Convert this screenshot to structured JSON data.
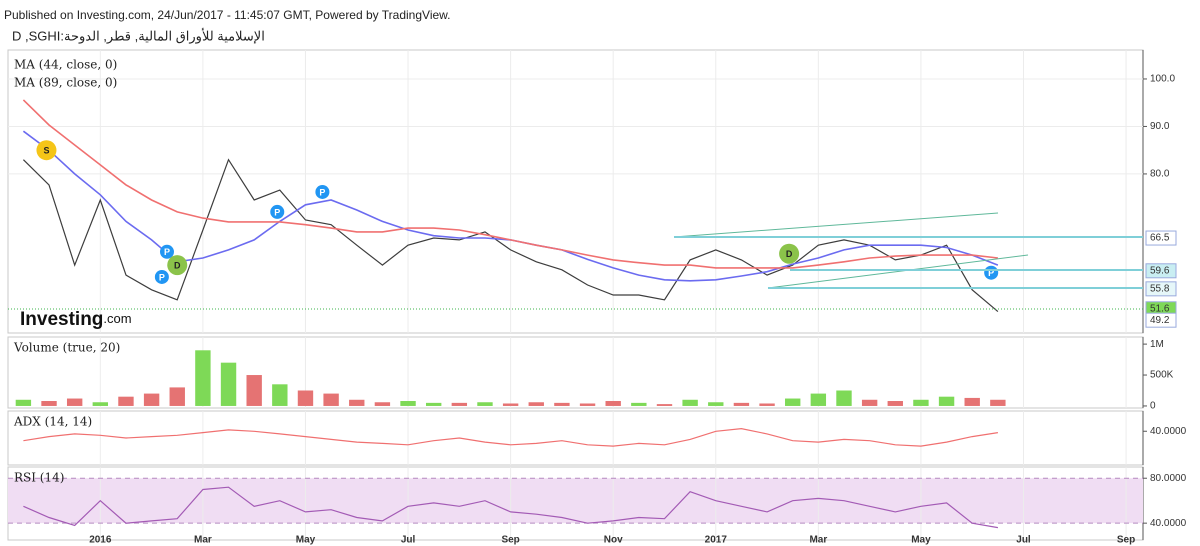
{
  "header": {
    "published": "Published on Investing.com, 24/Jun/2017 - 11:45:07 GMT, Powered by TradingView.",
    "symbol": "D ,SGHI:الإسلامية للأوراق المالية, قطر, الدوحة"
  },
  "logo": {
    "name": "Investing",
    "suffix": ".com"
  },
  "chart_data": [
    {
      "type": "line",
      "x": [
        -1.5,
        -1,
        -0.5,
        0,
        0.5,
        1,
        1.5,
        2,
        2.5,
        3,
        3.5,
        4,
        4.5,
        5,
        5.5,
        6,
        6.5,
        7,
        7.5,
        8,
        8.5,
        9,
        9.5,
        10,
        10.5,
        11,
        11.5,
        12,
        12.5,
        13,
        13.5,
        14,
        14.5,
        15,
        15.5,
        16,
        16.5,
        17,
        17.5
      ],
      "series": [
        {
          "color": "#3d3d3d",
          "values": [
            83,
            77.7,
            60.8,
            74.5,
            58.7,
            55.6,
            53.5,
            68.2,
            83,
            74.5,
            76.6,
            70.3,
            69.3,
            65,
            60.8,
            65,
            66.5,
            66.1,
            67.8,
            64,
            61.5,
            59.8,
            56.6,
            54.5,
            54.5,
            53.5,
            61.9,
            64,
            61.9,
            58.7,
            60.8,
            65,
            66.1,
            65,
            61.9,
            62.9,
            65,
            55.6,
            51
          ]
        },
        {
          "name": "MA (44, close, 0)",
          "color": "#6b6bf0",
          "values": [
            89,
            85,
            80,
            75.6,
            70,
            66.1,
            61.5,
            62.3,
            64,
            66.1,
            70,
            73.5,
            74.5,
            72.4,
            70,
            68.2,
            67,
            66.5,
            66.5,
            66.1,
            65,
            64,
            62,
            60.2,
            58.7,
            57.7,
            57.5,
            57.7,
            58.5,
            59.4,
            61,
            62.3,
            64,
            65,
            65,
            65,
            64.5,
            62.9,
            60.8
          ]
        },
        {
          "name": "MA (89, close, 0)",
          "color": "#f07070",
          "values": [
            95.6,
            90.3,
            86.1,
            81.9,
            77.7,
            74.5,
            72,
            70.7,
            69.9,
            69.9,
            69.9,
            69.3,
            68.6,
            67.8,
            67.8,
            68.6,
            68.6,
            68.2,
            67.2,
            66.1,
            65,
            64,
            62.9,
            61.9,
            61.3,
            60.8,
            60.8,
            60.2,
            60.2,
            60.2,
            60.2,
            60.8,
            61.5,
            62.3,
            62.7,
            62.9,
            62.9,
            62.9,
            62.3
          ]
        }
      ],
      "ylim": [
        46.5,
        106.1
      ],
      "yticks": [
        {
          "value": 100,
          "label": "100.0"
        },
        {
          "value": 90,
          "label": "90.0"
        },
        {
          "value": 80,
          "label": "80.0"
        }
      ],
      "grid": true,
      "markers": [
        {
          "label": "S",
          "x": -1.05,
          "y": 85,
          "color": "#f5c518"
        },
        {
          "label": "P",
          "x": 1.3,
          "y": 63.6,
          "color": "#2196f3"
        },
        {
          "label": "P",
          "x": 1.2,
          "y": 58.3,
          "color": "#2196f3"
        },
        {
          "label": "D",
          "x": 1.5,
          "y": 60.8,
          "color": "#8bc34a"
        },
        {
          "label": "P",
          "x": 3.45,
          "y": 72,
          "color": "#2196f3"
        },
        {
          "label": "P",
          "x": 4.33,
          "y": 76.2,
          "color": "#2196f3"
        },
        {
          "label": "D",
          "x": 13.43,
          "y": 63.2,
          "color": "#8bc34a"
        },
        {
          "label": "P",
          "x": 17.37,
          "y": 59.2,
          "color": "#2196f3"
        }
      ],
      "price_labels": [
        {
          "value": 66.5,
          "color": "#ffffff"
        },
        {
          "value": 59.6,
          "color": "#c9eef2"
        },
        {
          "value": 55.8,
          "color": "#e6f7f9"
        },
        {
          "value": 51.6,
          "color": "#7ed957"
        },
        {
          "value": 49.2,
          "color": "#ffffff"
        }
      ]
    },
    {
      "type": "bar",
      "title": "Volume (true, 20)",
      "x": [
        -1.5,
        -1,
        -0.5,
        0,
        0.5,
        1,
        1.5,
        2,
        2.5,
        3,
        3.5,
        4,
        4.5,
        5,
        5.5,
        6,
        6.5,
        7,
        7.5,
        8,
        8.5,
        9,
        9.5,
        10,
        10.5,
        11,
        11.5,
        12,
        12.5,
        13,
        13.5,
        14,
        14.5,
        15,
        15.5,
        16,
        16.5,
        17,
        17.5
      ],
      "values": [
        100000,
        80000,
        120000,
        60000,
        150000,
        200000,
        300000,
        900000,
        700000,
        500000,
        350000,
        250000,
        200000,
        100000,
        60000,
        80000,
        50000,
        50000,
        60000,
        40000,
        60000,
        50000,
        40000,
        80000,
        50000,
        30000,
        100000,
        60000,
        50000,
        40000,
        120000,
        200000,
        250000,
        100000,
        80000,
        100000,
        150000,
        130000,
        100000
      ],
      "up_color": "#7ed957",
      "down_color": "#e57373",
      "ylim": [
        -33000,
        1115000
      ],
      "yticks": [
        {
          "value": 1000000,
          "label": "1M"
        },
        {
          "value": 500000,
          "label": "500K"
        },
        0
      ]
    },
    {
      "type": "line",
      "title": "ADX (14, 14)",
      "x": [
        -1.5,
        -1,
        -0.5,
        0,
        0.5,
        1,
        1.5,
        2,
        2.5,
        3,
        3.5,
        4,
        4.5,
        5,
        5.5,
        6,
        6.5,
        7,
        7.5,
        8,
        8.5,
        9,
        9.5,
        10,
        10.5,
        11,
        11.5,
        12,
        12.5,
        13,
        13.5,
        14,
        14.5,
        15,
        15.5,
        16,
        16.5,
        17,
        17.5
      ],
      "series": [
        {
          "color": "#f07070",
          "values": [
            33,
            36,
            38,
            37,
            35,
            36,
            37,
            39,
            41,
            40,
            38,
            36,
            34,
            32,
            31,
            30,
            33,
            35,
            32,
            30,
            31,
            33,
            30,
            29,
            31,
            30,
            34,
            40,
            42,
            38,
            33,
            32,
            34,
            33,
            30,
            29,
            32,
            36,
            39
          ]
        }
      ],
      "ylim": [
        15,
        55
      ],
      "yticks": [
        {
          "value": 40,
          "label": "40.0000"
        }
      ]
    },
    {
      "type": "line",
      "title": "RSI (14)",
      "x": [
        -1.5,
        -1,
        -0.5,
        0,
        0.5,
        1,
        1.5,
        2,
        2.5,
        3,
        3.5,
        4,
        4.5,
        5,
        5.5,
        6,
        6.5,
        7,
        7.5,
        8,
        8.5,
        9,
        9.5,
        10,
        10.5,
        11,
        11.5,
        12,
        12.5,
        13,
        13.5,
        14,
        14.5,
        15,
        15.5,
        16,
        16.5,
        17,
        17.5
      ],
      "series": [
        {
          "color": "#a35bb5",
          "values": [
            55,
            45,
            38,
            60,
            40,
            42,
            44,
            70,
            72,
            55,
            60,
            50,
            52,
            45,
            42,
            55,
            58,
            55,
            60,
            50,
            48,
            45,
            40,
            42,
            45,
            44,
            68,
            60,
            55,
            50,
            60,
            62,
            60,
            55,
            50,
            55,
            58,
            40,
            36
          ]
        }
      ],
      "ylim": [
        25,
        90
      ],
      "yticks": [
        {
          "value": 80,
          "label": "80.0000"
        },
        {
          "value": 40,
          "label": "40.0000"
        }
      ],
      "grid": true,
      "band_color": "#f0ddf3",
      "xlim": [
        -1.8,
        20.33
      ],
      "xticks": [
        {
          "value": 0,
          "label": "2016"
        },
        {
          "value": 2,
          "label": "Mar"
        },
        {
          "value": 4,
          "label": "May"
        },
        {
          "value": 6,
          "label": "Jul"
        },
        {
          "value": 8,
          "label": "Sep"
        },
        {
          "value": 10,
          "label": "Nov"
        },
        {
          "value": 12,
          "label": "2017"
        },
        {
          "value": 14,
          "label": "Mar"
        },
        {
          "value": 16,
          "label": "May"
        },
        {
          "value": 18,
          "label": "Jul"
        },
        {
          "value": 20,
          "label": "Sep"
        }
      ]
    }
  ]
}
